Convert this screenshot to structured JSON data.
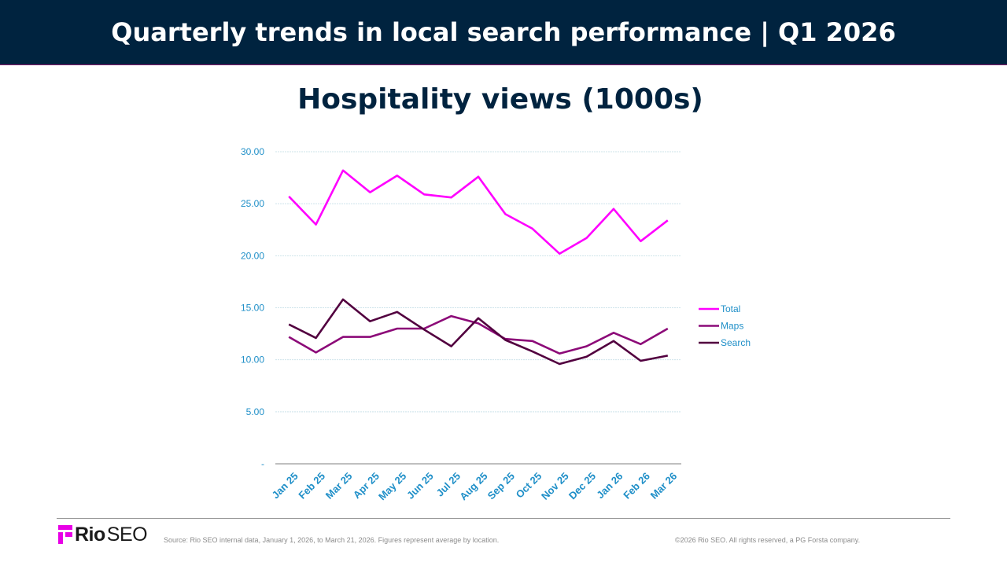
{
  "header": {
    "title": "Quarterly trends in local search performance | Q1 2026"
  },
  "chart_data": {
    "type": "line",
    "title": "Hospitality views (1000s)",
    "categories": [
      "Jan 25",
      "Feb 25",
      "Mar 25",
      "Apr 25",
      "May 25",
      "Jun 25",
      "Jul 25",
      "Aug 25",
      "Sep 25",
      "Oct 25",
      "Nov 25",
      "Dec 25",
      "Jan 26",
      "Feb 26",
      "Mar 26"
    ],
    "ylim": [
      0,
      30
    ],
    "yticks": [
      {
        "value": 30,
        "label": "30.00"
      },
      {
        "value": 25,
        "label": "25.00"
      },
      {
        "value": 20,
        "label": "20.00"
      },
      {
        "value": 15,
        "label": "15.00"
      },
      {
        "value": 10,
        "label": "10.00"
      },
      {
        "value": 5,
        "label": "5.00"
      },
      {
        "value": 0,
        "label": "-"
      }
    ],
    "grid": true,
    "legend_position": "right",
    "series": [
      {
        "name": "Total",
        "color": "#ff00ff",
        "values": [
          25.7,
          23.0,
          28.2,
          26.1,
          27.7,
          25.9,
          25.6,
          27.6,
          24.0,
          22.6,
          20.2,
          21.7,
          24.5,
          21.4,
          23.4
        ]
      },
      {
        "name": "Maps",
        "color": "#8c0a78",
        "values": [
          12.2,
          10.7,
          12.2,
          12.2,
          13.0,
          13.0,
          14.2,
          13.5,
          12.0,
          11.8,
          10.6,
          11.3,
          12.6,
          11.5,
          13.0
        ]
      },
      {
        "name": "Search",
        "color": "#52003f",
        "values": [
          13.4,
          12.1,
          15.8,
          13.7,
          14.6,
          12.9,
          11.3,
          14.0,
          11.9,
          10.8,
          9.6,
          10.3,
          11.8,
          9.9,
          10.4
        ]
      }
    ]
  },
  "footer": {
    "logo_rio": "Rio",
    "logo_seo": "SEO",
    "source": "Source: Rio SEO internal data, January 1, 2026, to March 21, 2026. Figures represent average by location.",
    "copyright": "©2026 Rio SEO. All rights reserved, a PG Forsta company."
  }
}
